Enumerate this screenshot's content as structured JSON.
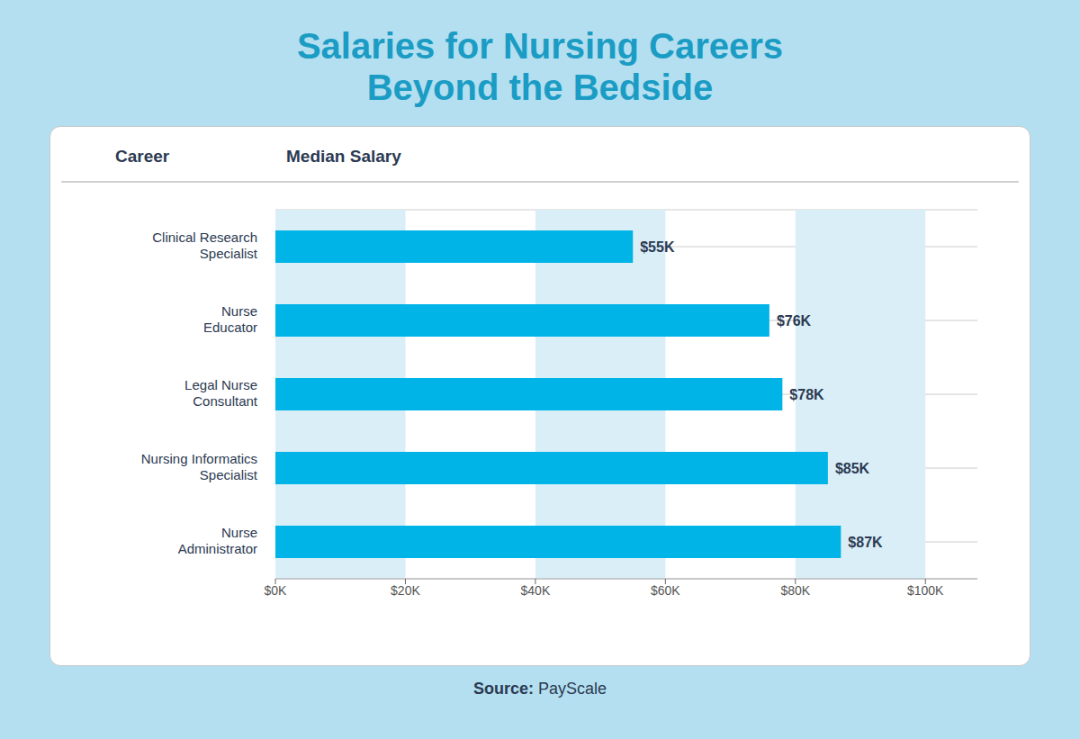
{
  "chart_data": {
    "type": "bar",
    "orientation": "horizontal",
    "title": "Salaries for Nursing Careers",
    "subtitle": "Beyond the Bedside",
    "x_label": "Median Salary",
    "y_label": "Career",
    "annotations": [
      "Source: PayScale"
    ],
    "categories": [
      "Clinical Research\nSpecialist",
      "Nurse\nEducator",
      "Legal Nurse\nConsultant",
      "Nursing Informatics\nSpecialist",
      "Nurse\nAdministrator"
    ],
    "values": [
      55000,
      76000,
      78000,
      85000,
      87000
    ],
    "value_labels": [
      "$55K",
      "$76K",
      "$78K",
      "$85K",
      "$87K"
    ],
    "data_labels": true,
    "color": "#00b4e8",
    "xlim": [
      0,
      108000
    ],
    "xticks": [
      {
        "value": 0,
        "label": "$0K"
      },
      {
        "value": 20000,
        "label": "$20K"
      },
      {
        "value": 40000,
        "label": "$40K"
      },
      {
        "value": 60000,
        "label": "$60K"
      },
      {
        "value": 80000,
        "label": "$80K"
      },
      {
        "value": 100000,
        "label": "$100K"
      }
    ]
  }
}
